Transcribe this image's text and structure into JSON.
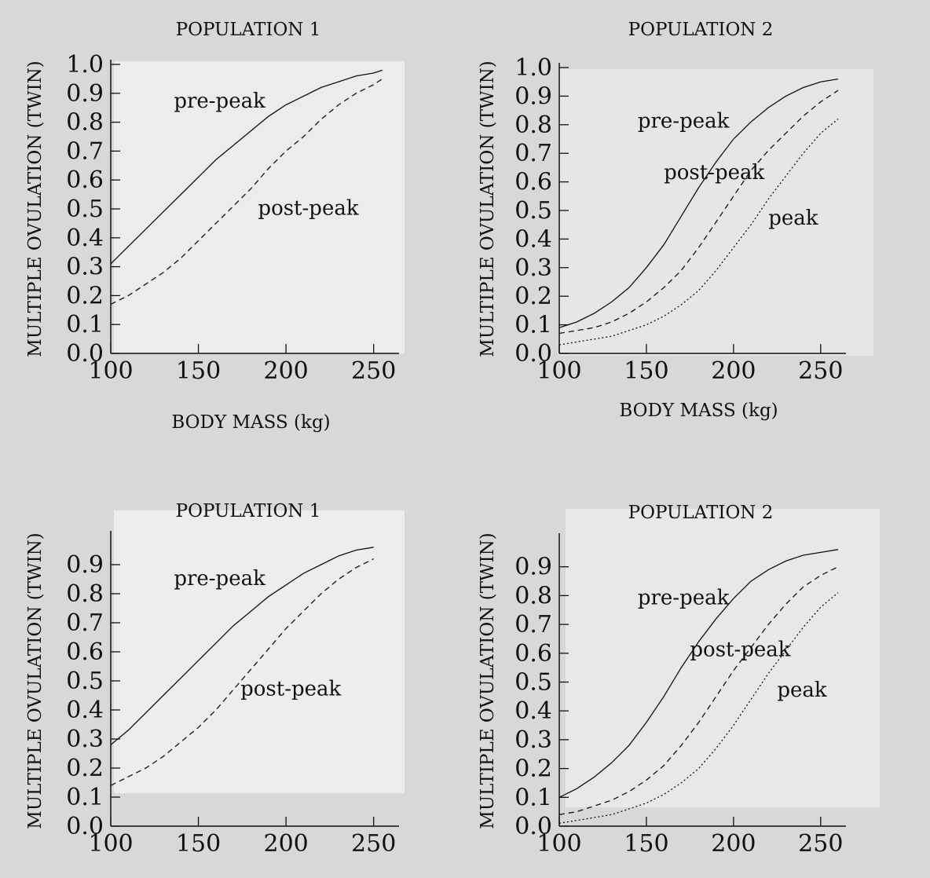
{
  "chart_data": [
    {
      "type": "line",
      "title": "POPULATION 1",
      "xlabel": "BODY MASS (kg)",
      "ylabel": "MULTIPLE OVULATION (TWIN)",
      "xlim": [
        100,
        260
      ],
      "ylim": [
        0,
        1
      ],
      "xticks": [
        "100",
        "150",
        "200",
        "250"
      ],
      "yticks": [
        "0.0",
        "0.1",
        "0.2",
        "0.3",
        "0.4",
        "0.5",
        "0.6",
        "0.7",
        "0.8",
        "0.9",
        "1.0"
      ],
      "grid": false,
      "annotations": [
        {
          "text": "pre-peak",
          "x": 136,
          "y": 0.85
        },
        {
          "text": "post-peak",
          "x": 184,
          "y": 0.48
        }
      ],
      "series": [
        {
          "name": "pre-peak",
          "style": "solid",
          "x": [
            100,
            110,
            120,
            130,
            140,
            150,
            160,
            170,
            180,
            190,
            200,
            210,
            220,
            230,
            240,
            250,
            255
          ],
          "y": [
            0.31,
            0.37,
            0.43,
            0.49,
            0.55,
            0.61,
            0.67,
            0.72,
            0.77,
            0.82,
            0.86,
            0.89,
            0.92,
            0.94,
            0.96,
            0.97,
            0.98
          ]
        },
        {
          "name": "post-peak",
          "style": "dashed",
          "x": [
            100,
            110,
            120,
            130,
            140,
            150,
            160,
            170,
            180,
            190,
            200,
            210,
            220,
            230,
            240,
            250,
            255
          ],
          "y": [
            0.17,
            0.2,
            0.24,
            0.28,
            0.33,
            0.39,
            0.45,
            0.51,
            0.57,
            0.64,
            0.7,
            0.75,
            0.81,
            0.86,
            0.9,
            0.93,
            0.95
          ]
        }
      ]
    },
    {
      "type": "line",
      "title": "POPULATION 2",
      "xlabel": "BODY MASS (kg)",
      "ylabel": "MULTIPLE OVULATION (TWIN)",
      "xlim": [
        100,
        260
      ],
      "ylim": [
        0,
        1
      ],
      "xticks": [
        "100",
        "150",
        "200",
        "250"
      ],
      "yticks": [
        "0.0",
        "0.1",
        "0.2",
        "0.3",
        "0.4",
        "0.5",
        "0.6",
        "0.7",
        "0.8",
        "0.9",
        "1.0"
      ],
      "grid": false,
      "annotations": [
        {
          "text": "pre-peak",
          "x": 145,
          "y": 0.79
        },
        {
          "text": "post-peak",
          "x": 160,
          "y": 0.61
        },
        {
          "text": "peak",
          "x": 220,
          "y": 0.45
        }
      ],
      "series": [
        {
          "name": "pre-peak",
          "style": "solid",
          "x": [
            100,
            110,
            120,
            130,
            140,
            150,
            160,
            170,
            180,
            190,
            200,
            210,
            220,
            230,
            240,
            250,
            260
          ],
          "y": [
            0.09,
            0.11,
            0.14,
            0.18,
            0.23,
            0.3,
            0.38,
            0.48,
            0.58,
            0.67,
            0.75,
            0.81,
            0.86,
            0.9,
            0.93,
            0.95,
            0.96
          ]
        },
        {
          "name": "post-peak",
          "style": "dashed",
          "x": [
            100,
            110,
            120,
            130,
            140,
            150,
            160,
            170,
            180,
            190,
            200,
            210,
            220,
            230,
            240,
            250,
            260
          ],
          "y": [
            0.07,
            0.08,
            0.09,
            0.11,
            0.14,
            0.18,
            0.23,
            0.29,
            0.37,
            0.46,
            0.55,
            0.64,
            0.71,
            0.77,
            0.83,
            0.88,
            0.92
          ]
        },
        {
          "name": "peak",
          "style": "dotted",
          "x": [
            100,
            110,
            120,
            130,
            140,
            150,
            160,
            170,
            180,
            190,
            200,
            210,
            220,
            230,
            240,
            250,
            260
          ],
          "y": [
            0.03,
            0.04,
            0.05,
            0.06,
            0.08,
            0.1,
            0.13,
            0.17,
            0.22,
            0.29,
            0.37,
            0.45,
            0.54,
            0.62,
            0.7,
            0.77,
            0.82
          ]
        }
      ]
    },
    {
      "type": "line",
      "title": "POPULATION 1",
      "xlabel": "",
      "ylabel": "MULTIPLE OVULATION (TWIN)",
      "xlim": [
        100,
        260
      ],
      "ylim": [
        0,
        1
      ],
      "xticks": [
        "100",
        "150",
        "200",
        "250"
      ],
      "yticks": [
        "0.0",
        "0.1",
        "0.2",
        "0.3",
        "0.4",
        "0.5",
        "0.6",
        "0.7",
        "0.8",
        "0.9"
      ],
      "grid": false,
      "annotations": [
        {
          "text": "pre-peak",
          "x": 136,
          "y": 0.83
        },
        {
          "text": "post-peak",
          "x": 174,
          "y": 0.45
        }
      ],
      "series": [
        {
          "name": "pre-peak",
          "style": "solid",
          "x": [
            100,
            110,
            120,
            130,
            140,
            150,
            160,
            170,
            180,
            190,
            200,
            210,
            220,
            230,
            240,
            250
          ],
          "y": [
            0.28,
            0.33,
            0.39,
            0.45,
            0.51,
            0.57,
            0.63,
            0.69,
            0.74,
            0.79,
            0.83,
            0.87,
            0.9,
            0.93,
            0.95,
            0.96
          ]
        },
        {
          "name": "post-peak",
          "style": "dashed",
          "x": [
            100,
            110,
            120,
            130,
            140,
            150,
            160,
            170,
            180,
            190,
            200,
            210,
            220,
            230,
            240,
            250
          ],
          "y": [
            0.14,
            0.17,
            0.2,
            0.24,
            0.29,
            0.34,
            0.4,
            0.47,
            0.54,
            0.61,
            0.68,
            0.74,
            0.8,
            0.85,
            0.89,
            0.92
          ]
        }
      ]
    },
    {
      "type": "line",
      "title": "POPULATION 2",
      "xlabel": "",
      "ylabel": "MULTIPLE OVULATION (TWIN)",
      "xlim": [
        100,
        260
      ],
      "ylim": [
        0,
        1
      ],
      "xticks": [
        "100",
        "150",
        "200",
        "250"
      ],
      "yticks": [
        "0.0",
        "0.1",
        "0.2",
        "0.3",
        "0.4",
        "0.5",
        "0.6",
        "0.7",
        "0.8",
        "0.9"
      ],
      "grid": false,
      "annotations": [
        {
          "text": "pre-peak",
          "x": 145,
          "y": 0.77
        },
        {
          "text": "post-peak",
          "x": 175,
          "y": 0.59
        },
        {
          "text": "peak",
          "x": 225,
          "y": 0.45
        }
      ],
      "series": [
        {
          "name": "pre-peak",
          "style": "solid",
          "x": [
            100,
            110,
            120,
            130,
            140,
            150,
            160,
            170,
            180,
            190,
            200,
            210,
            220,
            230,
            240,
            250,
            260
          ],
          "y": [
            0.1,
            0.13,
            0.17,
            0.22,
            0.28,
            0.36,
            0.45,
            0.55,
            0.64,
            0.72,
            0.79,
            0.85,
            0.89,
            0.92,
            0.94,
            0.95,
            0.96
          ]
        },
        {
          "name": "post-peak",
          "style": "dashed",
          "x": [
            100,
            110,
            120,
            130,
            140,
            150,
            160,
            170,
            180,
            190,
            200,
            210,
            220,
            230,
            240,
            250,
            260
          ],
          "y": [
            0.04,
            0.05,
            0.07,
            0.09,
            0.12,
            0.16,
            0.21,
            0.28,
            0.36,
            0.45,
            0.54,
            0.62,
            0.7,
            0.77,
            0.83,
            0.87,
            0.9
          ]
        },
        {
          "name": "peak",
          "style": "dotted",
          "x": [
            100,
            110,
            120,
            130,
            140,
            150,
            160,
            170,
            180,
            190,
            200,
            210,
            220,
            230,
            240,
            250,
            260
          ],
          "y": [
            0.01,
            0.02,
            0.03,
            0.04,
            0.06,
            0.08,
            0.11,
            0.15,
            0.2,
            0.27,
            0.35,
            0.44,
            0.53,
            0.61,
            0.69,
            0.76,
            0.81
          ]
        }
      ]
    }
  ]
}
